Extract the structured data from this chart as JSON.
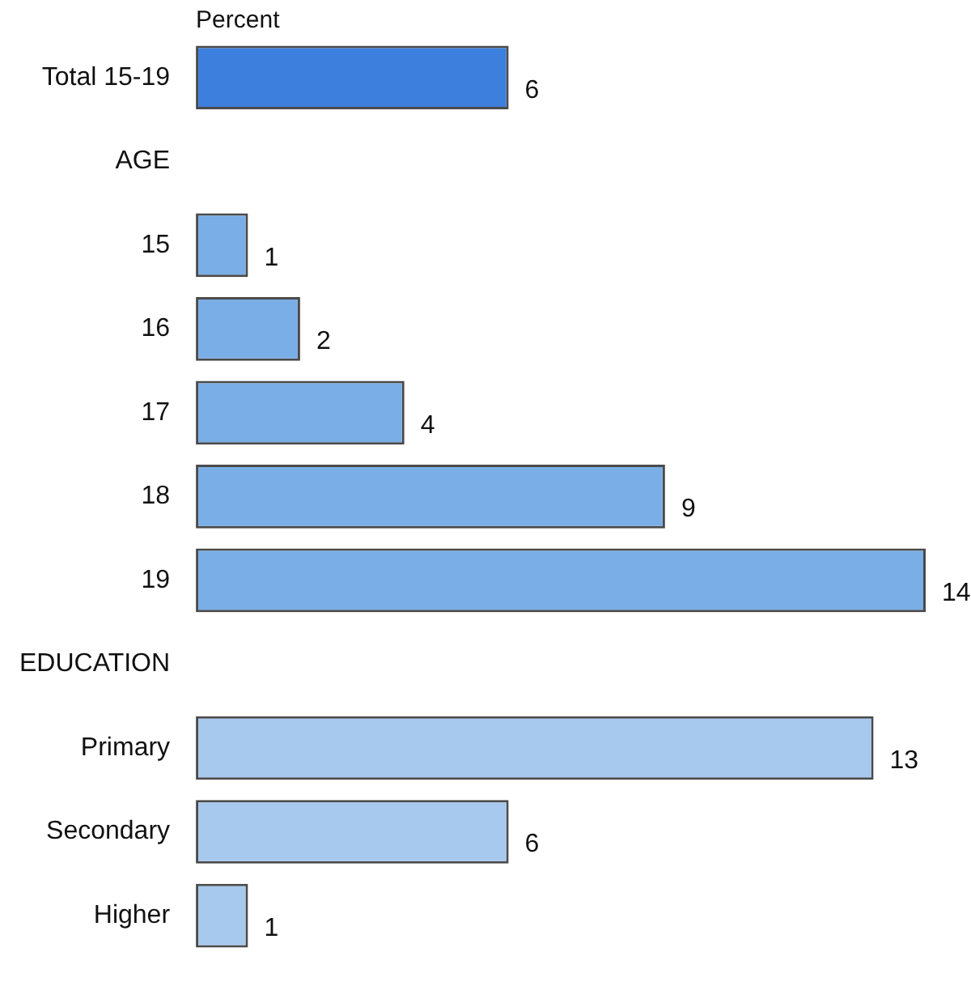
{
  "chart_data": {
    "type": "bar",
    "orientation": "horizontal",
    "xlabel": "Percent",
    "categories": [
      "Total 15-19",
      "AGE",
      "15",
      "16",
      "17",
      "18",
      "19",
      "EDUCATION",
      "Primary",
      "Secondary",
      "Higher"
    ],
    "values": [
      6,
      null,
      1,
      2,
      4,
      9,
      14,
      null,
      13,
      6,
      1
    ],
    "colors": [
      "#3d7fdc",
      "#7aaee6",
      "#7aaee6",
      "#7aaee6",
      "#7aaee6",
      "#7aaee6",
      "#7aaee6",
      "#a7c9ee",
      "#a7c9ee",
      "#a7c9ee",
      "#a7c9ee"
    ],
    "data_labels": true,
    "grid": false,
    "legend": false
  }
}
